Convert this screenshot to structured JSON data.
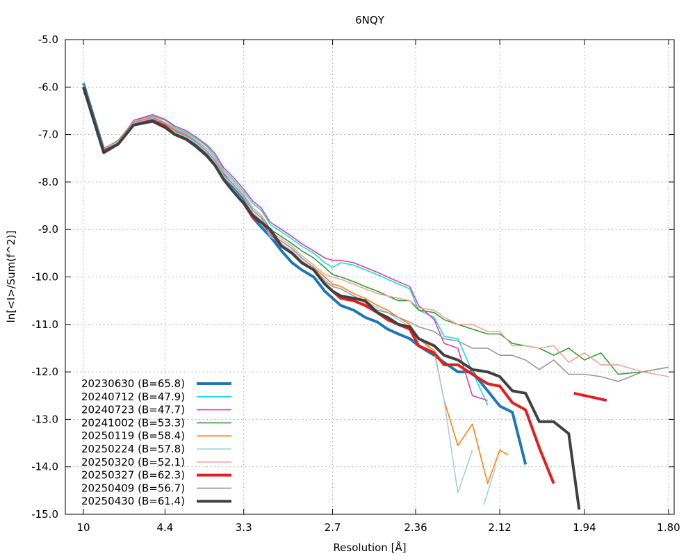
{
  "chart_data": {
    "type": "line",
    "title": "6NQY",
    "xlabel": "Resolution [Å]",
    "ylabel": "ln[<I>/Sum(f^2)]",
    "x_axis": {
      "scale": "inverse-square resolution",
      "range": [
        10,
        1.8
      ],
      "ticks": [
        "10",
        "4.4",
        "3.3",
        "2.7",
        "2.36",
        "2.12",
        "1.94",
        "1.80"
      ]
    },
    "y_axis": {
      "range": [
        -15.0,
        -5.0
      ],
      "ticks": [
        "-15.0",
        "-14.0",
        "-13.0",
        "-12.0",
        "-11.0",
        "-10.0",
        "-9.0",
        "-8.0",
        "-7.0",
        "-6.0",
        "-5.0"
      ]
    },
    "grid": true,
    "legend_position": "bottom-left",
    "series": [
      {
        "name": "20230630 (B=65.8)",
        "color": "#1f77b4",
        "width": 4,
        "x": [
          10,
          7.0,
          6.0,
          5.3,
          4.7,
          4.4,
          4.2,
          4.0,
          3.85,
          3.7,
          3.6,
          3.5,
          3.4,
          3.3,
          3.22,
          3.15,
          3.08,
          3.0,
          2.93,
          2.87,
          2.8,
          2.74,
          2.7,
          2.66,
          2.6,
          2.55,
          2.5,
          2.46,
          2.42,
          2.38,
          2.35,
          2.3,
          2.27,
          2.23,
          2.19,
          2.15,
          2.12,
          2.09,
          2.06
        ],
        "y": [
          -5.92,
          -7.32,
          -7.2,
          -6.78,
          -6.68,
          -6.78,
          -6.95,
          -7.05,
          -7.2,
          -7.4,
          -7.6,
          -7.85,
          -8.1,
          -8.35,
          -8.75,
          -8.95,
          -9.15,
          -9.45,
          -9.7,
          -9.85,
          -10.0,
          -10.3,
          -10.45,
          -10.6,
          -10.7,
          -10.85,
          -10.95,
          -11.1,
          -11.2,
          -11.3,
          -11.45,
          -11.65,
          -11.8,
          -12.0,
          -12.0,
          -12.4,
          -12.72,
          -12.85,
          -13.95
        ]
      },
      {
        "name": "20240712 (B=47.9)",
        "color": "#17dbe6",
        "width": 1.6,
        "x": [
          10,
          7.0,
          6.0,
          5.3,
          4.7,
          4.4,
          4.2,
          4.0,
          3.85,
          3.7,
          3.6,
          3.5,
          3.4,
          3.3,
          3.22,
          3.15,
          3.08,
          3.0,
          2.93,
          2.87,
          2.8,
          2.74,
          2.7,
          2.66,
          2.6,
          2.55,
          2.5,
          2.46,
          2.42,
          2.38,
          2.35,
          2.3,
          2.27,
          2.23,
          2.19,
          2.15
        ],
        "y": [
          -5.95,
          -7.28,
          -7.15,
          -6.72,
          -6.6,
          -6.7,
          -6.85,
          -6.95,
          -7.08,
          -7.25,
          -7.45,
          -7.75,
          -7.95,
          -8.2,
          -8.45,
          -8.6,
          -8.9,
          -9.05,
          -9.2,
          -9.35,
          -9.5,
          -9.7,
          -9.8,
          -9.7,
          -9.75,
          -9.85,
          -9.95,
          -10.05,
          -10.15,
          -10.25,
          -10.7,
          -10.85,
          -11.25,
          -11.3,
          -12.0,
          -12.7
        ]
      },
      {
        "name": "20240723 (B=47.7)",
        "color": "#e0409a",
        "width": 1.6,
        "x": [
          10,
          7.0,
          6.0,
          5.3,
          4.7,
          4.4,
          4.2,
          4.0,
          3.85,
          3.7,
          3.6,
          3.5,
          3.4,
          3.3,
          3.22,
          3.15,
          3.08,
          3.0,
          2.93,
          2.87,
          2.8,
          2.74,
          2.7,
          2.66,
          2.6,
          2.55,
          2.5,
          2.46,
          2.42,
          2.38,
          2.35,
          2.3,
          2.27,
          2.23,
          2.19,
          2.15
        ],
        "y": [
          -5.95,
          -7.3,
          -7.15,
          -6.7,
          -6.58,
          -6.68,
          -6.82,
          -6.92,
          -7.05,
          -7.22,
          -7.4,
          -7.7,
          -7.9,
          -8.15,
          -8.4,
          -8.55,
          -8.85,
          -9.0,
          -9.15,
          -9.3,
          -9.45,
          -9.6,
          -9.65,
          -9.65,
          -9.7,
          -9.8,
          -9.9,
          -10.0,
          -10.1,
          -10.2,
          -10.6,
          -10.9,
          -11.4,
          -11.5,
          -12.5,
          -12.6
        ]
      },
      {
        "name": "20241002 (B=53.3)",
        "color": "#2ca02c",
        "width": 1.6,
        "x": [
          10,
          7.0,
          6.0,
          5.3,
          4.7,
          4.4,
          4.2,
          4.0,
          3.85,
          3.7,
          3.6,
          3.5,
          3.4,
          3.3,
          3.22,
          3.15,
          3.08,
          3.0,
          2.93,
          2.87,
          2.8,
          2.74,
          2.7,
          2.66,
          2.6,
          2.55,
          2.5,
          2.46,
          2.42,
          2.38,
          2.35,
          2.3,
          2.27,
          2.23,
          2.19,
          2.15,
          2.12,
          2.09,
          2.06,
          2.03,
          2.0,
          1.97,
          1.94,
          1.91,
          1.88,
          1.84,
          1.8
        ],
        "y": [
          -5.95,
          -7.3,
          -7.12,
          -6.72,
          -6.62,
          -6.75,
          -6.88,
          -6.98,
          -7.12,
          -7.3,
          -7.5,
          -7.8,
          -8.0,
          -8.25,
          -8.55,
          -8.7,
          -9.0,
          -9.15,
          -9.3,
          -9.45,
          -9.6,
          -9.8,
          -9.95,
          -10.0,
          -10.1,
          -10.2,
          -10.3,
          -10.4,
          -10.5,
          -10.5,
          -10.7,
          -10.75,
          -10.9,
          -11.0,
          -11.1,
          -11.2,
          -11.2,
          -11.4,
          -11.45,
          -11.5,
          -11.65,
          -11.5,
          -11.75,
          -11.6,
          -12.05,
          -12.0,
          -11.9
        ]
      },
      {
        "name": "20250119 (B=58.4)",
        "color": "#ff7f0e",
        "width": 1.6,
        "x": [
          10,
          7.0,
          6.0,
          5.3,
          4.7,
          4.4,
          4.2,
          4.0,
          3.85,
          3.7,
          3.6,
          3.5,
          3.4,
          3.3,
          3.22,
          3.15,
          3.08,
          3.0,
          2.93,
          2.87,
          2.8,
          2.74,
          2.7,
          2.66,
          2.6,
          2.55,
          2.5,
          2.46,
          2.42,
          2.38,
          2.35,
          2.3,
          2.27,
          2.23,
          2.19,
          2.15,
          2.12,
          2.1
        ],
        "y": [
          -5.95,
          -7.32,
          -7.15,
          -6.75,
          -6.65,
          -6.78,
          -6.92,
          -7.02,
          -7.15,
          -7.35,
          -7.55,
          -7.85,
          -8.05,
          -8.3,
          -8.6,
          -8.75,
          -9.1,
          -9.25,
          -9.4,
          -9.6,
          -9.8,
          -10.0,
          -10.15,
          -10.2,
          -10.35,
          -10.45,
          -10.6,
          -10.7,
          -10.85,
          -11.0,
          -11.3,
          -11.55,
          -12.6,
          -13.55,
          -13.1,
          -14.35,
          -13.65,
          -13.75
        ]
      },
      {
        "name": "20250224 (B=57.8)",
        "color": "#a6cee3",
        "width": 1.6,
        "x": [
          10,
          7.0,
          6.0,
          5.3,
          4.7,
          4.4,
          4.2,
          4.0,
          3.85,
          3.7,
          3.6,
          3.5,
          3.4,
          3.3,
          3.22,
          3.15,
          3.08,
          3.0,
          2.93,
          2.87,
          2.8,
          2.74,
          2.7,
          2.66,
          2.6,
          2.55,
          2.5,
          2.46,
          2.42,
          2.38,
          2.35,
          2.3,
          2.27,
          2.23,
          2.19,
          null,
          2.16,
          2.13
        ],
        "y": [
          -5.95,
          -7.32,
          -7.15,
          -6.76,
          -6.66,
          -6.8,
          -6.95,
          -7.05,
          -7.18,
          -7.38,
          -7.58,
          -7.88,
          -8.08,
          -8.33,
          -8.65,
          -8.8,
          -9.15,
          -9.3,
          -9.45,
          -9.65,
          -9.85,
          -10.05,
          -10.2,
          -10.25,
          -10.4,
          -10.5,
          -10.65,
          -10.75,
          -10.9,
          -11.05,
          -11.3,
          -11.6,
          -12.6,
          -14.55,
          -13.65,
          null,
          -14.8,
          -14.0
        ]
      },
      {
        "name": "20250320 (B=52.1)",
        "color": "#f4a09c",
        "width": 1.6,
        "x": [
          10,
          7.0,
          6.0,
          5.3,
          4.7,
          4.4,
          4.2,
          4.0,
          3.85,
          3.7,
          3.6,
          3.5,
          3.4,
          3.3,
          3.22,
          3.15,
          3.08,
          3.0,
          2.93,
          2.87,
          2.8,
          2.74,
          2.7,
          2.66,
          2.6,
          2.55,
          2.5,
          2.46,
          2.42,
          2.38,
          2.35,
          2.3,
          2.27,
          2.23,
          2.19,
          2.15,
          2.12,
          2.09,
          2.06,
          2.03,
          2.0,
          1.97,
          1.94,
          1.91,
          1.88,
          1.84,
          1.8
        ],
        "y": [
          -5.95,
          -7.3,
          -7.12,
          -6.72,
          -6.62,
          -6.75,
          -6.88,
          -6.98,
          -7.12,
          -7.3,
          -7.5,
          -7.8,
          -8.0,
          -8.25,
          -8.55,
          -8.7,
          -9.05,
          -9.2,
          -9.35,
          -9.55,
          -9.75,
          -9.95,
          -10.0,
          -10.05,
          -10.15,
          -10.25,
          -10.35,
          -10.4,
          -10.45,
          -10.5,
          -10.65,
          -10.7,
          -10.85,
          -11.0,
          -11.0,
          -11.15,
          -11.15,
          -11.45,
          -11.45,
          -11.5,
          -11.45,
          -11.8,
          -11.6,
          -11.85,
          -11.85,
          -12.0,
          -12.1
        ]
      },
      {
        "name": "20250327 (B=62.3)",
        "color": "#e02020",
        "width": 4,
        "x": [
          10,
          7.0,
          6.0,
          5.3,
          4.7,
          4.4,
          4.2,
          4.0,
          3.85,
          3.7,
          3.6,
          3.5,
          3.4,
          3.3,
          3.22,
          3.15,
          3.08,
          3.0,
          2.93,
          2.87,
          2.8,
          2.74,
          2.7,
          2.66,
          2.6,
          2.55,
          2.5,
          2.46,
          2.42,
          2.38,
          2.35,
          2.3,
          2.27,
          2.23,
          2.19,
          2.15,
          2.12,
          2.09,
          2.06,
          2.03,
          2.0,
          null,
          1.96,
          1.9
        ],
        "y": [
          -6.0,
          -7.35,
          -7.2,
          -6.8,
          -6.7,
          -6.82,
          -7.0,
          -7.1,
          -7.25,
          -7.45,
          -7.65,
          -7.95,
          -8.2,
          -8.45,
          -8.75,
          -8.85,
          -9.05,
          -9.35,
          -9.5,
          -9.7,
          -9.85,
          -10.15,
          -10.3,
          -10.45,
          -10.5,
          -10.6,
          -10.75,
          -10.9,
          -11.0,
          -11.1,
          -11.45,
          -11.6,
          -11.85,
          -11.85,
          -12.05,
          -12.25,
          -12.3,
          -12.65,
          -12.8,
          -13.6,
          -14.35,
          null,
          -12.45,
          -12.6
        ]
      },
      {
        "name": "20250409 (B=56.7)",
        "color": "#999999",
        "width": 1.6,
        "x": [
          10,
          7.0,
          6.0,
          5.3,
          4.7,
          4.4,
          4.2,
          4.0,
          3.85,
          3.7,
          3.6,
          3.5,
          3.4,
          3.3,
          3.22,
          3.15,
          3.08,
          3.0,
          2.93,
          2.87,
          2.8,
          2.74,
          2.7,
          2.66,
          2.6,
          2.55,
          2.5,
          2.46,
          2.42,
          2.38,
          2.35,
          2.3,
          2.27,
          2.23,
          2.19,
          2.15,
          2.12,
          2.09,
          2.06,
          2.03,
          2.0,
          1.97,
          1.94,
          1.91,
          1.88,
          1.84,
          1.8
        ],
        "y": [
          -5.95,
          -7.3,
          -7.12,
          -6.74,
          -6.64,
          -6.76,
          -6.9,
          -7.0,
          -7.15,
          -7.35,
          -7.55,
          -7.85,
          -8.05,
          -8.3,
          -8.6,
          -8.75,
          -9.1,
          -9.25,
          -9.4,
          -9.6,
          -9.8,
          -10.1,
          -10.2,
          -10.25,
          -10.4,
          -10.55,
          -10.7,
          -10.75,
          -10.85,
          -10.95,
          -11.05,
          -11.15,
          -11.3,
          -11.35,
          -11.5,
          -11.5,
          -11.65,
          -11.65,
          -11.75,
          -11.95,
          -11.75,
          -12.05,
          -12.05,
          -12.1,
          -12.2,
          -12.0,
          -11.9
        ]
      },
      {
        "name": "20250430 (B=61.4)",
        "color": "#404040",
        "width": 4,
        "x": [
          10,
          7.0,
          6.0,
          5.3,
          4.7,
          4.4,
          4.2,
          4.0,
          3.85,
          3.7,
          3.6,
          3.5,
          3.4,
          3.3,
          3.22,
          3.15,
          3.08,
          3.0,
          2.93,
          2.87,
          2.8,
          2.74,
          2.7,
          2.66,
          2.6,
          2.55,
          2.5,
          2.46,
          2.42,
          2.38,
          2.35,
          2.3,
          2.27,
          2.23,
          2.19,
          2.15,
          2.12,
          2.09,
          2.06,
          2.03,
          2.0,
          1.97,
          1.95
        ],
        "y": [
          -6.0,
          -7.38,
          -7.2,
          -6.8,
          -6.72,
          -6.85,
          -7.0,
          -7.1,
          -7.25,
          -7.45,
          -7.65,
          -7.95,
          -8.2,
          -8.45,
          -8.7,
          -8.85,
          -9.0,
          -9.35,
          -9.5,
          -9.7,
          -9.85,
          -10.15,
          -10.3,
          -10.4,
          -10.45,
          -10.5,
          -10.75,
          -10.85,
          -11.0,
          -11.05,
          -11.3,
          -11.45,
          -11.65,
          -11.75,
          -11.95,
          -12.0,
          -12.1,
          -12.4,
          -12.45,
          -13.05,
          -13.05,
          -13.3,
          -14.9
        ]
      }
    ]
  }
}
